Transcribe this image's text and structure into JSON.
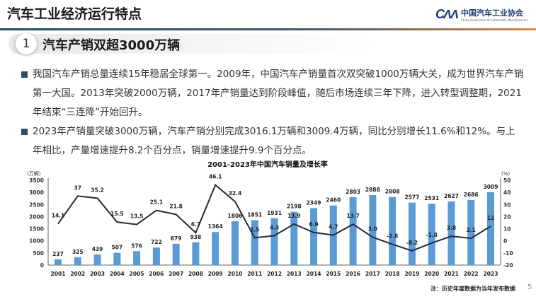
{
  "header": {
    "title": "汽车工业经济运行特点",
    "logo_mark": "CAAM",
    "logo_cn": "中国汽车工业协会",
    "logo_en": "China Association of Automobile Manufacturers"
  },
  "section": {
    "number": "1",
    "title": "汽车产销双超3000万辆"
  },
  "bullets": [
    "我国汽车产销总量连续15年稳居全球第一。2009年，中国汽车产销量首次双突破1000万辆大关，成为世界汽车产销第一大国。2013年突破2000万辆，2017年产销量达到阶段峰值，随后市场连续三年下降，进入转型调整期，2021年结束“三连降”开始回升。",
    "2023年产销量突破3000万辆，汽车产销分别完成3016.1万辆和3009.4万辆，同比分别增长11.6%和12%。与上年相比，产量增速提升8.2个百分点，销量增速提升9.9个百分点。"
  ],
  "chart_data": {
    "type": "bar+line",
    "title": "2001-2023年中国汽车销量及增长率",
    "ylabel_left": "(万辆)",
    "ylabel_right": "(%)",
    "ylim_left": [
      0,
      3500
    ],
    "yticks_left": [
      0,
      500,
      1000,
      1500,
      2000,
      2500,
      3000,
      3500
    ],
    "ylim_right": [
      -20,
      50
    ],
    "yticks_right": [
      -20,
      -10,
      0,
      10,
      20,
      30,
      40,
      50
    ],
    "categories": [
      "2001",
      "2002",
      "2003",
      "2004",
      "2005",
      "2006",
      "2007",
      "2008",
      "2009",
      "2010",
      "2011",
      "2012",
      "2013",
      "2014",
      "2015",
      "2016",
      "2017",
      "2018",
      "2019",
      "2020",
      "2021",
      "2022",
      "2023"
    ],
    "series": [
      {
        "type": "bar",
        "axis": "left",
        "color": "#5b9bd5",
        "values": [
          237,
          325,
          439,
          507,
          576,
          722,
          879,
          938,
          1364,
          1806,
          1851,
          1931,
          2198,
          2349,
          2460,
          2803,
          2888,
          2808,
          2577,
          2531,
          2627,
          2686,
          3009
        ]
      },
      {
        "type": "line",
        "axis": "right",
        "color": "#1f2d3d",
        "values": [
          14.1,
          37,
          35.2,
          15.5,
          13.5,
          25.1,
          21.8,
          6.7,
          46.1,
          32.4,
          2.5,
          4.3,
          13.9,
          6.9,
          4.7,
          13.7,
          3.0,
          -2.8,
          -8.2,
          -1.8,
          3.8,
          2.1,
          12
        ],
        "labels": [
          "14.1",
          "37",
          "35.2",
          "15.5",
          "13.5",
          "25.1",
          "21.8",
          "6.7",
          "46.1",
          "32.4",
          "2.5",
          "4.3",
          "13.9",
          "6.9",
          "4.7",
          "13.7",
          "3.0",
          "-2.8",
          "-8.2",
          "-1.8",
          "3.8",
          "2.1",
          "12"
        ]
      }
    ],
    "grid": false
  },
  "footer": {
    "note": "注：历史年度数据为当年发布数据",
    "page": "5"
  }
}
